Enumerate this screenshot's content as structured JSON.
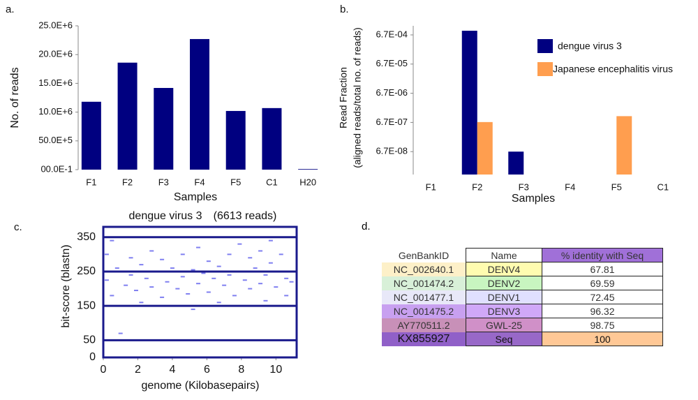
{
  "chart_data": [
    {
      "type": "bar",
      "panel_label": "a.",
      "x_label": "Samples",
      "y_label": "No. of reads",
      "categories": [
        "F1",
        "F2",
        "F3",
        "F4",
        "F5",
        "C1",
        "H20"
      ],
      "values": [
        11800000,
        18600000,
        14200000,
        22700000,
        10200000,
        10700000,
        100000
      ],
      "color": "#000080",
      "ylim": [
        0,
        25000000
      ],
      "yticks": [
        {
          "value": 0,
          "label": "00.0E-1"
        },
        {
          "value": 5000000,
          "label": "50.0E+5"
        },
        {
          "value": 10000000,
          "label": "10.0E+6"
        },
        {
          "value": 15000000,
          "label": "15.0E+6"
        },
        {
          "value": 20000000,
          "label": "20.0E+6"
        },
        {
          "value": 25000000,
          "label": "25.0E+6"
        }
      ]
    },
    {
      "type": "bar",
      "panel_label": "b.",
      "x_label": "Samples",
      "y_label": [
        "Read Fraction",
        "(aligned reads/total no. of reads)"
      ],
      "log_scale": true,
      "categories": [
        "F1",
        "F2",
        "F3",
        "F4",
        "F5",
        "C1"
      ],
      "series": [
        {
          "name": "dengue virus 3",
          "color": "#000080",
          "values": [
            null,
            0.00093,
            6.7e-08,
            null,
            null,
            null
          ]
        },
        {
          "name": "Japanese encephalitis virus",
          "color": "#ff9e4f",
          "values": [
            null,
            6.9e-07,
            null,
            null,
            1.1e-06,
            null
          ]
        }
      ],
      "ylim": [
        1.1e-08,
        0.00137
      ],
      "yticks": [
        {
          "value": 6.7e-08,
          "label": "6.7E-08"
        },
        {
          "value": 6.7e-07,
          "label": "6.7E-07"
        },
        {
          "value": 6.7e-06,
          "label": "6.7E-06"
        },
        {
          "value": 6.7e-05,
          "label": "6.7E-05"
        },
        {
          "value": 0.00067,
          "label": "6.7E-04"
        }
      ]
    },
    {
      "type": "scatter",
      "panel_label": "c.",
      "title": "dengue virus 3",
      "subtitle": "(6613 reads)",
      "x_label": "genome (Kilobasepairs)",
      "y_label": "bit-score (blastn)",
      "color": "#7f7ff0",
      "grid_color": "#1a1a8c",
      "x": [
        0.2,
        0.2,
        0.5,
        0.5,
        0.8,
        1.0,
        1.3,
        1.3,
        1.6,
        1.6,
        1.9,
        2.2,
        2.2,
        2.5,
        2.8,
        2.8,
        3.1,
        3.4,
        3.4,
        3.7,
        4.0,
        4.0,
        4.3,
        4.6,
        4.6,
        4.9,
        5.2,
        5.2,
        5.5,
        5.5,
        5.8,
        6.1,
        6.1,
        6.4,
        6.7,
        6.7,
        7.0,
        7.3,
        7.3,
        7.6,
        7.9,
        7.9,
        8.2,
        8.5,
        8.5,
        8.8,
        9.1,
        9.1,
        9.4,
        9.4,
        9.7,
        9.7,
        10.0,
        10.3,
        10.3,
        10.6,
        10.6,
        10.9
      ],
      "y": [
        225,
        300,
        180,
        340,
        260,
        70,
        210,
        150,
        240,
        290,
        195,
        270,
        160,
        230,
        205,
        310,
        250,
        175,
        285,
        220,
        260,
        150,
        200,
        235,
        300,
        185,
        255,
        140,
        215,
        320,
        245,
        190,
        280,
        230,
        265,
        160,
        210,
        240,
        300,
        180,
        250,
        330,
        225,
        200,
        290,
        260,
        215,
        310,
        240,
        165,
        275,
        340,
        205,
        250,
        300,
        230,
        180,
        220
      ],
      "xlim": [
        0,
        11.2
      ],
      "ylim": [
        0,
        380
      ],
      "xticks": [
        0,
        2,
        4,
        6,
        8,
        10
      ],
      "yticks": [
        0,
        50,
        150,
        250,
        350
      ]
    }
  ],
  "table": {
    "panel_label": "d.",
    "columns": [
      "GenBankID",
      "Name",
      "% identity with Seq"
    ],
    "rows": [
      [
        "NC_002640.1",
        "DENV4",
        67.81
      ],
      [
        "NC_001474.2",
        "DENV2",
        69.59
      ],
      [
        "NC_001477.1",
        "DENV1",
        72.45
      ],
      [
        "NC_001475.2",
        "DENV3",
        96.32
      ],
      [
        "AY770511.2",
        "GWL-25",
        98.75
      ],
      [
        "KX855927",
        "Seq",
        100
      ]
    ]
  }
}
